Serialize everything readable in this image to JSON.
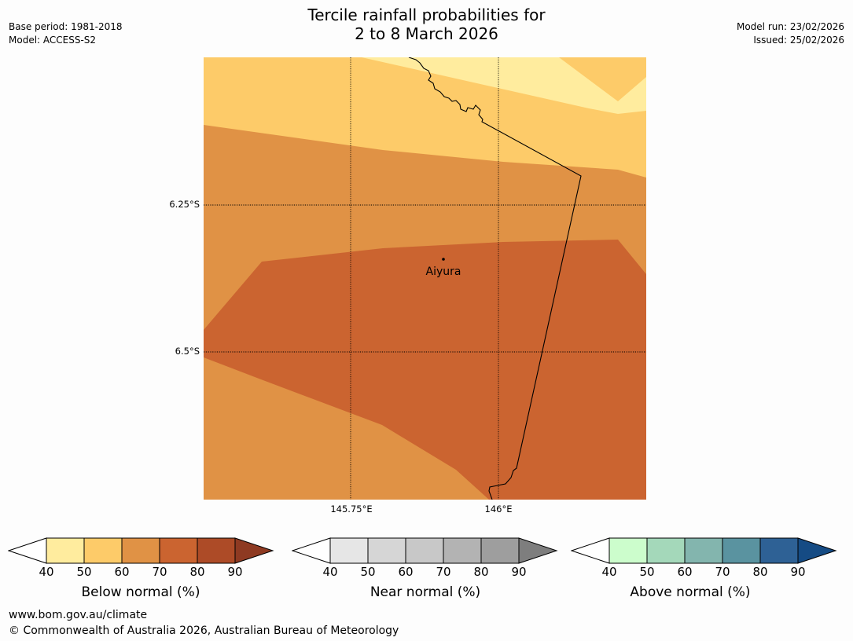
{
  "title": {
    "line1": "Tercile rainfall probabilities for",
    "line2": "2 to 8 March 2026"
  },
  "meta": {
    "base_period": "Base period: 1981-2018",
    "model": "Model: ACCESS-S2",
    "model_run": "Model run: 23/02/2026",
    "issued": "Issued: 25/02/2026"
  },
  "map": {
    "lat_labels": [
      "6.25°S",
      "6.5°S"
    ],
    "lon_labels": [
      "145.75°E",
      "146°E"
    ],
    "place": "Aiyura",
    "region_colors": {
      "c40_50": "#ffec9e",
      "c50_60": "#fdcb69",
      "c60_70": "#e09245",
      "c70_80": "#cb6430"
    }
  },
  "colorbars": [
    {
      "label": "Below normal (%)",
      "ticks": [
        "40",
        "50",
        "60",
        "70",
        "80",
        "90"
      ],
      "colors": [
        "#ffec9e",
        "#fdcb69",
        "#e09245",
        "#cb6430",
        "#ad4b27"
      ],
      "extend_color": "#8e3a22"
    },
    {
      "label": "Near normal (%)",
      "ticks": [
        "40",
        "50",
        "60",
        "70",
        "80",
        "90"
      ],
      "colors": [
        "#e6e6e6",
        "#d6d6d6",
        "#c8c8c8",
        "#b3b3b3",
        "#9e9e9e"
      ],
      "extend_color": "#7e7e7e"
    },
    {
      "label": "Above normal (%)",
      "ticks": [
        "40",
        "50",
        "60",
        "70",
        "80",
        "90"
      ],
      "colors": [
        "#ccfdcc",
        "#a4d8ba",
        "#83b5ae",
        "#5a93a0",
        "#2e6195"
      ],
      "extend_color": "#154b84"
    }
  ],
  "footer": {
    "url": "www.bom.gov.au/climate",
    "copyright": "© Commonwealth of Australia 2026, Australian Bureau of Meteorology"
  }
}
